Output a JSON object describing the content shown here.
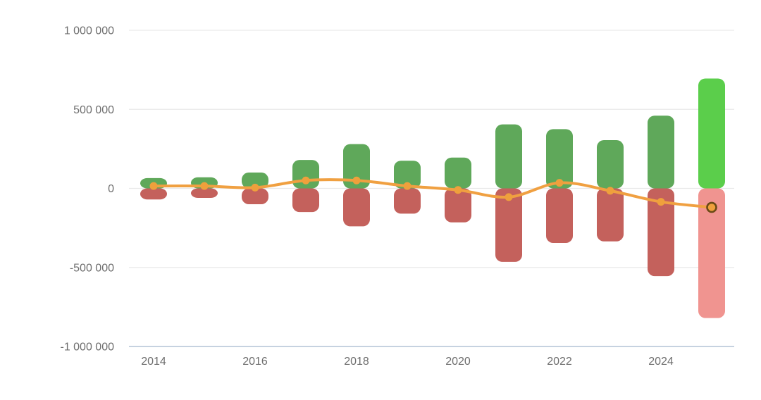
{
  "chart_data": {
    "type": "bar",
    "subtype": "combo-bar-line",
    "title": "",
    "xlabel": "",
    "ylabel": "",
    "grid": true,
    "legend": "none",
    "ylim": [
      -1000000,
      1000000
    ],
    "categories": [
      "2014",
      "2015",
      "2016",
      "2017",
      "2018",
      "2019",
      "2020",
      "2021",
      "2022",
      "2023",
      "2024",
      "2025"
    ],
    "x_tick_labels": [
      "2014",
      "2016",
      "2018",
      "2020",
      "2022",
      "2024"
    ],
    "y_ticks": [
      {
        "label": "1 000 000",
        "value": 1000000
      },
      {
        "label": "500 000",
        "value": 500000
      },
      {
        "label": "0",
        "value": 0
      },
      {
        "label": "-500 000",
        "value": -500000
      },
      {
        "label": "-1 000 000",
        "value": -1000000
      }
    ],
    "series": [
      {
        "name": "positive-bars",
        "type": "bar",
        "values": [
          65000,
          70000,
          100000,
          180000,
          280000,
          175000,
          195000,
          405000,
          375000,
          305000,
          460000,
          695000
        ]
      },
      {
        "name": "negative-bars",
        "type": "bar",
        "values": [
          -70000,
          -60000,
          -100000,
          -150000,
          -240000,
          -160000,
          -215000,
          -465000,
          -345000,
          -335000,
          -555000,
          -820000
        ]
      },
      {
        "name": "net-line",
        "type": "line",
        "values": [
          15000,
          15000,
          5000,
          50000,
          50000,
          15000,
          -10000,
          -55000,
          35000,
          -15000,
          -85000,
          -120000
        ]
      }
    ],
    "highlight_last_category": true,
    "colors": {
      "bar_positive": "#5FA85A",
      "bar_positive_highlight": "#5BCE4B",
      "bar_negative": "#C4615C",
      "bar_negative_highlight": "#F09490",
      "line": "#F0A041",
      "point": "#EFA03C",
      "last_point_ring": "#6B4A16",
      "gridline": "#E9E9E9",
      "baseline": "#C6D2E0",
      "axis_text": "#6E6E6E"
    }
  }
}
